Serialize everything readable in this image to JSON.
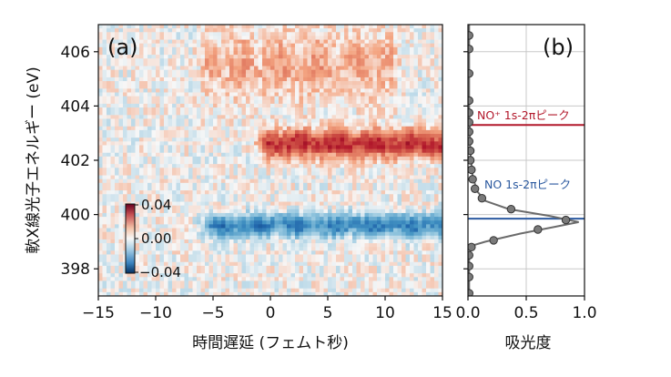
{
  "chart_data": [
    {
      "type": "heatmap",
      "panel_label": "(a)",
      "xlabel": "時間遅延 (フェムト秒)",
      "ylabel": "軟X線光子エネルギー (eV)",
      "xlim": [
        -15,
        15
      ],
      "ylim": [
        397,
        407
      ],
      "xticks": [
        -15,
        -10,
        -5,
        0,
        5,
        10,
        15
      ],
      "xtick_labels": [
        "−15",
        "−10",
        "−5",
        "0",
        "5",
        "10",
        "15"
      ],
      "yticks": [
        398,
        400,
        402,
        404,
        406
      ],
      "ytick_labels": [
        "398",
        "400",
        "402",
        "404",
        "406"
      ],
      "colormap": "RdBu_r",
      "colorbar": {
        "range": [
          -0.04,
          0.04
        ],
        "ticks": [
          "0.04",
          "0.00",
          "−0.04"
        ],
        "placement": "inside-lower-left"
      },
      "features": [
        {
          "description": "positive band",
          "energy_center": 402.6,
          "energy_width": 1.0,
          "time_start": 0,
          "time_end": 15,
          "peak_value": 0.035
        },
        {
          "description": "negative band",
          "energy_center": 399.6,
          "energy_width": 0.8,
          "time_start": -5,
          "time_end": 15,
          "peak_value": -0.03
        },
        {
          "description": "weak positive region",
          "energy_center": 405.5,
          "energy_width": 2.5,
          "time_start": -5,
          "time_end": 10,
          "peak_value": 0.012
        }
      ]
    },
    {
      "type": "scatter",
      "panel_label": "(b)",
      "xlabel": "吸光度",
      "xlim": [
        0,
        1.0
      ],
      "ylim": [
        397,
        407
      ],
      "xticks": [
        0,
        0.5,
        1.0
      ],
      "xtick_labels": [
        "0.0",
        "0.5",
        "1.0"
      ],
      "grid": true,
      "points": [
        {
          "x": 0.01,
          "y": 397.1
        },
        {
          "x": 0.01,
          "y": 397.7
        },
        {
          "x": 0.01,
          "y": 398.1
        },
        {
          "x": 0.01,
          "y": 398.5
        },
        {
          "x": 0.03,
          "y": 398.8
        },
        {
          "x": 0.22,
          "y": 399.05
        },
        {
          "x": 0.6,
          "y": 399.45
        },
        {
          "x": 0.84,
          "y": 399.8
        },
        {
          "x": 0.37,
          "y": 400.2
        },
        {
          "x": 0.12,
          "y": 400.6
        },
        {
          "x": 0.06,
          "y": 400.95
        },
        {
          "x": 0.04,
          "y": 401.3
        },
        {
          "x": 0.03,
          "y": 401.65
        },
        {
          "x": 0.02,
          "y": 402.0
        },
        {
          "x": 0.02,
          "y": 402.35
        },
        {
          "x": 0.01,
          "y": 402.7
        },
        {
          "x": 0.01,
          "y": 403.05
        },
        {
          "x": 0.01,
          "y": 403.4
        },
        {
          "x": 0.01,
          "y": 403.75
        },
        {
          "x": 0.01,
          "y": 404.2
        },
        {
          "x": 0.01,
          "y": 405.2
        },
        {
          "x": 0.01,
          "y": 406.1
        },
        {
          "x": 0.01,
          "y": 406.6
        }
      ],
      "fit_curve": [
        {
          "x": 0.01,
          "y": 397.0
        },
        {
          "x": 0.01,
          "y": 398.5
        },
        {
          "x": 0.03,
          "y": 398.85
        },
        {
          "x": 0.15,
          "y": 399.0
        },
        {
          "x": 0.45,
          "y": 399.3
        },
        {
          "x": 0.75,
          "y": 399.55
        },
        {
          "x": 0.95,
          "y": 399.72
        },
        {
          "x": 0.7,
          "y": 399.95
        },
        {
          "x": 0.35,
          "y": 400.2
        },
        {
          "x": 0.15,
          "y": 400.5
        },
        {
          "x": 0.08,
          "y": 400.85
        },
        {
          "x": 0.04,
          "y": 401.4
        },
        {
          "x": 0.02,
          "y": 402.3
        },
        {
          "x": 0.01,
          "y": 404.0
        },
        {
          "x": 0.01,
          "y": 407.0
        }
      ],
      "reference_lines": [
        {
          "label": "NO⁺ 1s-2πピーク",
          "y": 403.3,
          "color": "#b2182b"
        },
        {
          "label": "NO 1s-2πピーク",
          "y": 399.85,
          "color": "#2c5aa0"
        }
      ]
    }
  ]
}
